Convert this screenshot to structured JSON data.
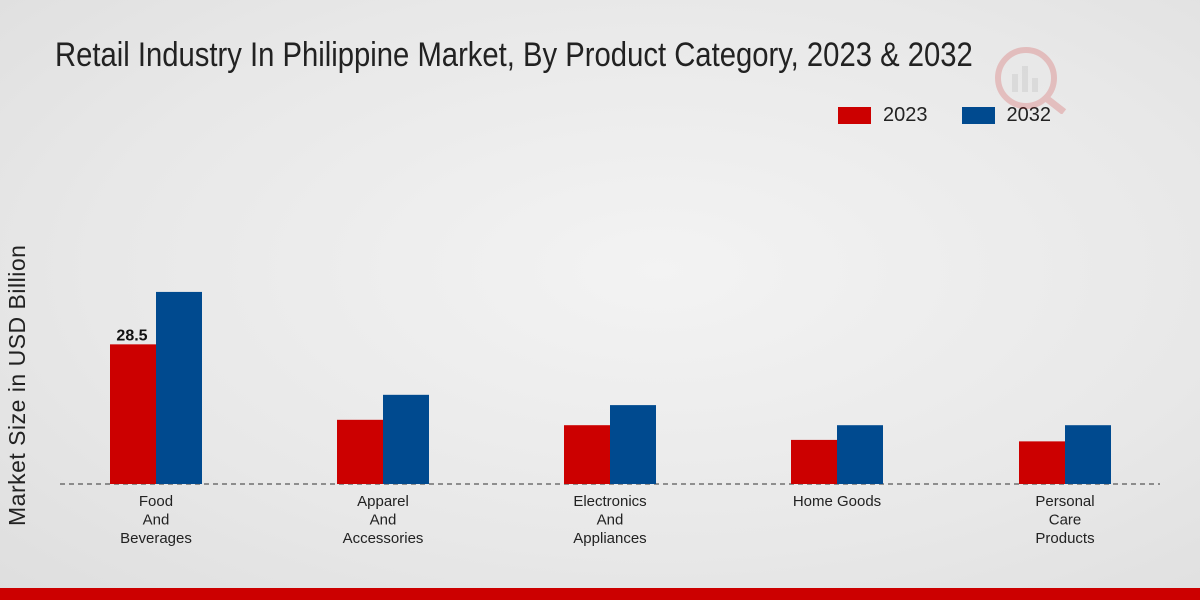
{
  "chart_data": {
    "type": "bar",
    "title": "Retail Industry In Philippine Market, By Product Category, 2023 & 2032",
    "ylabel": "Market Size in USD Billion",
    "xlabel": "",
    "categories": [
      [
        "Food",
        "And",
        "Beverages"
      ],
      [
        "Apparel",
        "And",
        "Accessories"
      ],
      [
        "Electronics",
        "And",
        "Appliances"
      ],
      [
        "Home Goods"
      ],
      [
        "Personal",
        "Care",
        "Products"
      ]
    ],
    "series": [
      {
        "name": "2023",
        "color": "#cc0000",
        "values": [
          28.5,
          13.1,
          12.0,
          9.0,
          8.7
        ]
      },
      {
        "name": "2032",
        "color": "#004a8f",
        "values": [
          39.2,
          18.2,
          16.1,
          12.0,
          12.0
        ]
      }
    ],
    "data_labels": [
      {
        "series": 0,
        "category": 0,
        "text": "28.5"
      }
    ],
    "ylim": [
      0,
      60
    ],
    "legend_position": "top-right",
    "grid": false,
    "baseline_style": "dashed"
  }
}
